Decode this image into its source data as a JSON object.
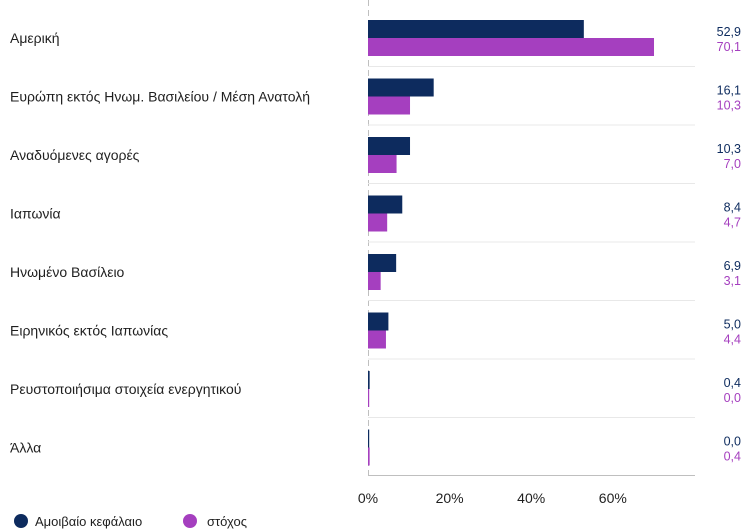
{
  "chart_data": {
    "type": "bar",
    "orientation": "horizontal",
    "categories": [
      "Αμερική",
      "Ευρώπη εκτός Ηνωμ. Βασιλείου / Μέση Ανατολή",
      "Αναδυόμενες αγορές",
      "Ιαπωνία",
      "Ηνωμένο Βασίλειο",
      "Ειρηνικός εκτός Ιαπωνίας",
      "Ρευστοποιήσιμα στοιχεία ενεργητικού",
      "Άλλα"
    ],
    "series": [
      {
        "name": "Αμοιβαίο κεφάλαιο",
        "color": "#0d2b5e",
        "values": [
          52.9,
          16.1,
          10.3,
          8.4,
          6.9,
          5.0,
          0.4,
          0.0
        ],
        "labels": [
          "52,9",
          "16,1",
          "10,3",
          "8,4",
          "6,9",
          "5,0",
          "0,4",
          "0,0"
        ]
      },
      {
        "name": "στόχος",
        "color": "#a53fbf",
        "values": [
          70.1,
          10.3,
          7.0,
          4.7,
          3.1,
          4.4,
          0.0,
          0.4
        ],
        "labels": [
          "70,1",
          "10,3",
          "7,0",
          "4,7",
          "3,1",
          "4,4",
          "0,0",
          "0,4"
        ]
      }
    ],
    "xlim": [
      0,
      80
    ],
    "ticks": [
      0,
      20,
      40,
      60
    ],
    "tick_labels": [
      "0%",
      "20%",
      "40%",
      "60%"
    ],
    "grid": false,
    "legend_position": "bottom-left",
    "title": "",
    "xlabel": "",
    "ylabel": ""
  }
}
